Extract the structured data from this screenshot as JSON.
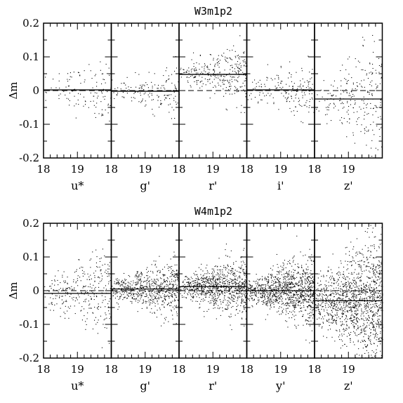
{
  "chart_data": [
    {
      "type": "scatter",
      "title": "W3m1p2",
      "ylabel": "Δm",
      "ylim": [
        -0.2,
        0.2
      ],
      "xlim": [
        18,
        20
      ],
      "yticks": [
        "0.2",
        "0.1",
        "0",
        "-0.1",
        "-0.2"
      ],
      "xticks": [
        "18",
        "19"
      ],
      "reference_line": 0,
      "panels": [
        {
          "band": "u*",
          "offset": 0.002,
          "scatter": 0.035,
          "n_points": 120
        },
        {
          "band": "g'",
          "offset": -0.002,
          "scatter": 0.025,
          "n_points": 150
        },
        {
          "band": "r'",
          "offset": 0.048,
          "scatter": 0.03,
          "n_points": 300
        },
        {
          "band": "i'",
          "offset": 0.002,
          "scatter": 0.03,
          "n_points": 180
        },
        {
          "band": "z'",
          "offset": -0.025,
          "scatter": 0.06,
          "n_points": 250
        }
      ]
    },
    {
      "type": "scatter",
      "title": "W4m1p2",
      "ylabel": "Δm",
      "ylim": [
        -0.2,
        0.2
      ],
      "xlim": [
        18,
        20
      ],
      "yticks": [
        "0.2",
        "0.1",
        "0",
        "-0.1",
        "-0.2"
      ],
      "xticks": [
        "18",
        "19"
      ],
      "reference_line": 0,
      "panels": [
        {
          "band": "u*",
          "offset": -0.008,
          "scatter": 0.045,
          "n_points": 300
        },
        {
          "band": "g'",
          "offset": 0.005,
          "scatter": 0.03,
          "n_points": 700
        },
        {
          "band": "r'",
          "offset": 0.012,
          "scatter": 0.03,
          "n_points": 900
        },
        {
          "band": "y'",
          "offset": 0.0,
          "scatter": 0.035,
          "n_points": 1100
        },
        {
          "band": "z'",
          "offset": -0.03,
          "scatter": 0.065,
          "n_points": 1300
        }
      ]
    }
  ]
}
